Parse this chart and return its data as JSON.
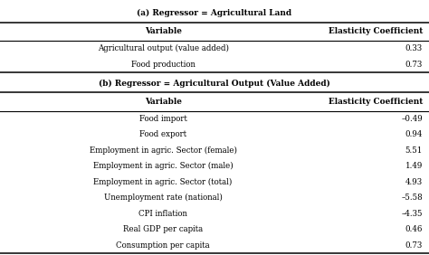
{
  "title_a": "(a) Regressor = Agricultural Land",
  "title_b": "(b) Regressor = Agricultural Output (Value Added)",
  "col_headers": [
    "Variable",
    "Elasticity Coefficient"
  ],
  "section_a_rows": [
    [
      "Agricultural output (value added)",
      "0.33"
    ],
    [
      "Food production",
      "0.73"
    ]
  ],
  "section_b_rows": [
    [
      "Food import",
      "–0.49"
    ],
    [
      "Food export",
      "0.94"
    ],
    [
      "Employment in agric. Sector (female)",
      "5.51"
    ],
    [
      "Employment in agric. Sector (male)",
      "1.49"
    ],
    [
      "Employment in agric. Sector (total)",
      "4.93"
    ],
    [
      "Unemployment rate (national)",
      "–5.58"
    ],
    [
      "CPI inflation",
      "–4.35"
    ],
    [
      "Real GDP per capita",
      "0.46"
    ],
    [
      "Consumption per capita",
      "0.73"
    ]
  ],
  "bg_color": "#e8e8e8",
  "table_bg": "#ffffff",
  "font_size": 6.2,
  "title_font_size": 6.5,
  "header_font_size": 6.4
}
